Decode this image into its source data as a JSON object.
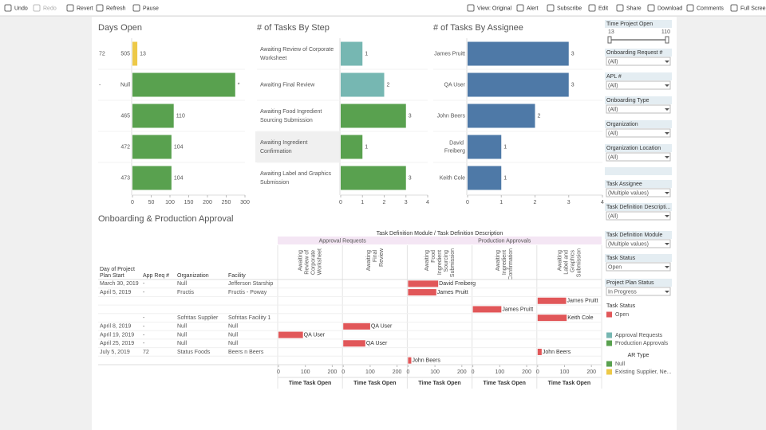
{
  "toolbar": {
    "left": [
      "Undo",
      "Redo",
      "Revert",
      "Refresh",
      "Pause"
    ],
    "right": [
      "View: Original",
      "Alert",
      "Subscribe",
      "Edit",
      "Share",
      "Download",
      "Comments",
      "Full Screen"
    ]
  },
  "chart_data": [
    {
      "type": "bar",
      "orientation": "horizontal",
      "title": "Days Open",
      "category_groups": [
        "72",
        "-",
        null,
        null,
        null
      ],
      "categories": [
        "505",
        "Null",
        "465",
        "472",
        "473"
      ],
      "values": [
        13,
        274,
        110,
        104,
        104
      ],
      "value_labels": [
        "13",
        "*",
        "110",
        "104",
        "104"
      ],
      "colors": [
        "#edc948",
        "#59a14f",
        "#59a14f",
        "#59a14f",
        "#59a14f"
      ],
      "xlim": [
        0,
        300
      ],
      "xticks": [
        0,
        50,
        100,
        150,
        200,
        250,
        300
      ]
    },
    {
      "type": "bar",
      "orientation": "horizontal",
      "title": "# of Tasks By Step",
      "categories": [
        "Awaiting Review of Corporate Worksheet",
        "Awaiting Final Review",
        "Awaiting Food Ingredient Sourcing Submission",
        "Awaiting Ingredient Confirmation",
        "Awaiting Label and Graphics Submission"
      ],
      "values": [
        1,
        2,
        3,
        1,
        3
      ],
      "colors": [
        "#76b7b2",
        "#76b7b2",
        "#59a14f",
        "#59a14f",
        "#59a14f"
      ],
      "xlim": [
        0,
        4
      ],
      "xticks": [
        0,
        1,
        2,
        3,
        4
      ]
    },
    {
      "type": "bar",
      "orientation": "horizontal",
      "title": "# of Tasks By Assignee",
      "categories": [
        "James Pruitt",
        "QA User",
        "John Beers",
        "David Freiberg",
        "Keith Cole"
      ],
      "values": [
        3,
        3,
        2,
        1,
        1
      ],
      "color": "#4e79a7",
      "xlim": [
        0,
        4
      ],
      "xticks": [
        0,
        1,
        2,
        3,
        4
      ]
    },
    {
      "type": "gantt",
      "title": "Onboarding & Production Approval",
      "header": "Task Definition Module / Task Definition Description",
      "modules": [
        {
          "name": "Approval Requests",
          "columns": [
            "Awaiting Review of Corporate Worksheet",
            "Awaiting Final Review"
          ]
        },
        {
          "name": "Production Approvals",
          "columns": [
            "Awaiting Food Ingredient Sourcing Submission",
            "Awaiting Ingredient Confirmation",
            "Awaiting Label and Graphics Submission"
          ]
        }
      ],
      "row_headers": [
        "Day of Project Plan Start",
        "App Req #",
        "Organization",
        "Facility"
      ],
      "rows": [
        {
          "cells": [
            "March 30, 2019",
            "-",
            "Null",
            "Jefferson Starship"
          ],
          "step": "Awaiting Food Ingredient Sourcing Submission",
          "value": 112,
          "name": "David Freiberg"
        },
        {
          "cells": [
            "April 5, 2019",
            "-",
            "Fructis",
            "Fructis - Poway"
          ],
          "step": "Awaiting Food Ingredient Sourcing Submission",
          "value": 105,
          "name": "James Pruitt"
        },
        {
          "cells": [
            null,
            null,
            null,
            null
          ],
          "step": "Awaiting Label and Graphics Submission",
          "value": 106,
          "name": "James Pruitt"
        },
        {
          "cells": [
            null,
            null,
            null,
            null
          ],
          "step": "Awaiting Ingredient Confirmation",
          "value": 106,
          "name": "James Pruitt"
        },
        {
          "cells": [
            null,
            "-",
            "Sofritas Supplier",
            "Sofritas Facility 1"
          ],
          "step": "Awaiting Label and Graphics Submission",
          "value": 108,
          "name": "Keith Cole"
        },
        {
          "cells": [
            "April 8, 2019",
            "-",
            "Null",
            "Null"
          ],
          "step": "Awaiting Final Review",
          "value": 100,
          "name": "QA User"
        },
        {
          "cells": [
            "April 19, 2019",
            "-",
            "Null",
            "Null"
          ],
          "step": "Awaiting Review of Corporate Worksheet",
          "value": 91,
          "name": "QA User"
        },
        {
          "cells": [
            "April 25, 2019",
            "-",
            "Null",
            "Null"
          ],
          "step": "Awaiting Final Review",
          "value": 82,
          "name": "QA User"
        },
        {
          "cells": [
            "July 5, 2019",
            "72",
            "Status Foods",
            "Beers n Beers"
          ],
          "step": "Awaiting Label and Graphics Submission",
          "value": 15,
          "name": "John Beers"
        },
        {
          "cells": [
            null,
            null,
            null,
            null
          ],
          "step": "Awaiting Food Ingredient Sourcing Submission",
          "value": 12,
          "name": "John Beers"
        }
      ],
      "color": "#e15759",
      "xlim": [
        0,
        235
      ],
      "xticks": [
        0,
        100,
        200
      ],
      "xlabel": "Time Task Open"
    }
  ],
  "filters": [
    {
      "label": "Time Project Open",
      "range": [
        13,
        110
      ]
    },
    {
      "label": "Onboarding Request #",
      "value": "(All)"
    },
    {
      "label": "APL #",
      "value": "(All)"
    },
    {
      "label": "Onboarding Type",
      "value": "(All)"
    },
    {
      "label": "Organization",
      "value": "(All)"
    },
    {
      "label": "Organization Location",
      "value": "(All)"
    },
    {
      "label": "Task Assignee",
      "value": "(Multiple values)"
    },
    {
      "label": "Task Definition Descripti...",
      "value": "(All)"
    },
    {
      "label": "Task Definition Module",
      "value": "(Multiple values)"
    },
    {
      "label": "Task Status",
      "value": "Open"
    },
    {
      "label": "Project Plan Status",
      "value": "In Progress"
    }
  ],
  "legends": [
    {
      "title": "Task Status",
      "items": [
        {
          "name": "Open",
          "color": "#e15759"
        }
      ]
    },
    {
      "items": [
        {
          "name": "Approval Requests",
          "color": "#76b7b2"
        },
        {
          "name": "Production Approvals",
          "color": "#59a14f"
        }
      ]
    },
    {
      "title": "AR Type",
      "items": [
        {
          "name": "Null",
          "color": "#59a14f"
        },
        {
          "name": "Existing Supplier, Ne...",
          "color": "#edc948"
        }
      ]
    }
  ]
}
